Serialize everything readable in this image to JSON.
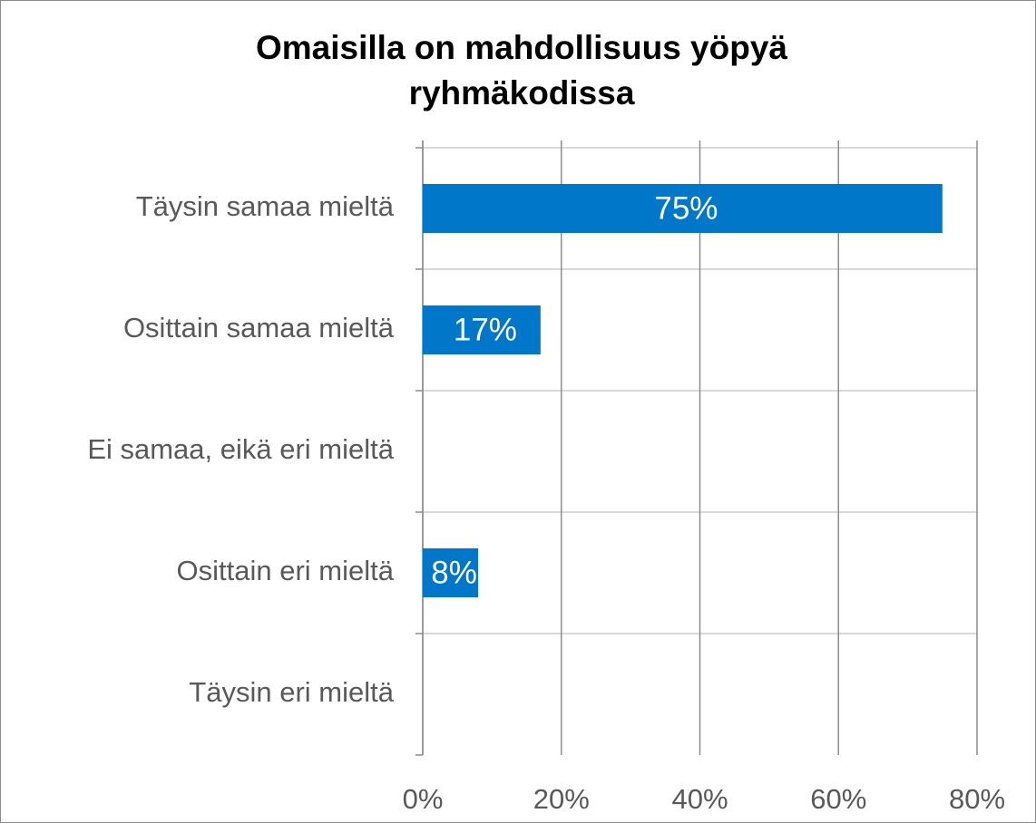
{
  "chart_data": {
    "type": "barh",
    "title": "Omaisilla on mahdollisuus yöpyä ryhmäkodissa",
    "categories": [
      "Täysin samaa mieltä",
      "Osittain samaa mieltä",
      "Ei samaa, eikä eri mieltä",
      "Osittain eri mieltä",
      "Täysin eri mieltä"
    ],
    "values": [
      75,
      17,
      null,
      8,
      null
    ],
    "value_labels": [
      "75%",
      "17%",
      null,
      "8%",
      null
    ],
    "color": "#0077c8",
    "xlim": [
      0,
      80
    ],
    "xticks": [
      {
        "value": 0,
        "label": "0%"
      },
      {
        "value": 20,
        "label": "20%"
      },
      {
        "value": 40,
        "label": "40%"
      },
      {
        "value": 60,
        "label": "60%"
      },
      {
        "value": 80,
        "label": "80%"
      }
    ],
    "grid": true
  }
}
